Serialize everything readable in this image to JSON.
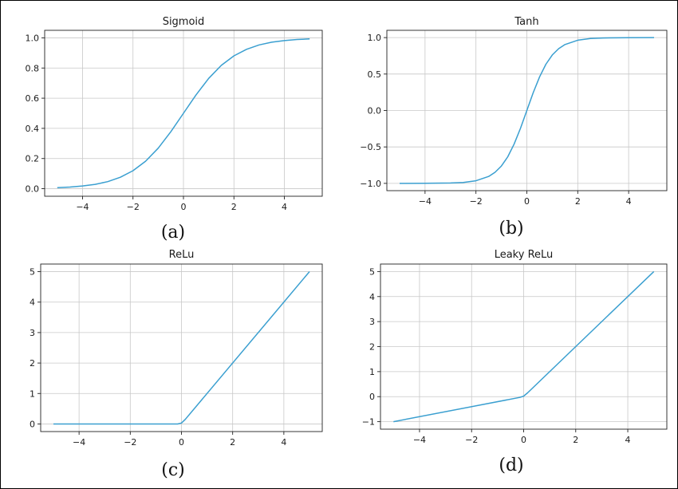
{
  "figure": {
    "background": "#ffffff",
    "border_color": "#000000",
    "line_color": "#3a9fd0",
    "grid_color": "#c8c8c8"
  },
  "chart_data": [
    {
      "type": "line",
      "title": "Sigmoid",
      "panel_label": "(a)",
      "xlabel": "",
      "ylabel": "",
      "xlim": [
        -5.5,
        5.5
      ],
      "ylim": [
        -0.05,
        1.05
      ],
      "xticks": [
        -4,
        -2,
        0,
        2,
        4
      ],
      "xtick_labels": [
        "−4",
        "−2",
        "0",
        "2",
        "4"
      ],
      "yticks": [
        0.0,
        0.2,
        0.4,
        0.6,
        0.8,
        1.0
      ],
      "ytick_labels": [
        "0.0",
        "0.2",
        "0.4",
        "0.6",
        "0.8",
        "1.0"
      ],
      "grid": true,
      "series": [
        {
          "color": "#3a9fd0",
          "x": [
            -5,
            -4.5,
            -4,
            -3.5,
            -3,
            -2.5,
            -2,
            -1.5,
            -1,
            -0.5,
            0,
            0.5,
            1,
            1.5,
            2,
            2.5,
            3,
            3.5,
            4,
            4.5,
            5
          ],
          "y": [
            0.007,
            0.011,
            0.018,
            0.029,
            0.047,
            0.076,
            0.119,
            0.182,
            0.269,
            0.378,
            0.5,
            0.622,
            0.731,
            0.818,
            0.881,
            0.924,
            0.953,
            0.971,
            0.982,
            0.989,
            0.993
          ]
        }
      ]
    },
    {
      "type": "line",
      "title": "Tanh",
      "panel_label": "(b)",
      "xlabel": "",
      "ylabel": "",
      "xlim": [
        -5.5,
        5.5
      ],
      "ylim": [
        -1.1,
        1.1
      ],
      "xticks": [
        -4,
        -2,
        0,
        2,
        4
      ],
      "xtick_labels": [
        "−4",
        "−2",
        "0",
        "2",
        "4"
      ],
      "yticks": [
        -1.0,
        -0.5,
        0.0,
        0.5,
        1.0
      ],
      "ytick_labels": [
        "−1.0",
        "−0.5",
        "0.0",
        "0.5",
        "1.0"
      ],
      "grid": true,
      "series": [
        {
          "color": "#3a9fd0",
          "x": [
            -5,
            -4,
            -3,
            -2.5,
            -2,
            -1.5,
            -1.25,
            -1,
            -0.75,
            -0.5,
            -0.25,
            0,
            0.25,
            0.5,
            0.75,
            1,
            1.25,
            1.5,
            2,
            2.5,
            3,
            4,
            5
          ],
          "y": [
            -1.0,
            -0.999,
            -0.995,
            -0.987,
            -0.964,
            -0.905,
            -0.848,
            -0.762,
            -0.635,
            -0.462,
            -0.245,
            0.0,
            0.245,
            0.462,
            0.635,
            0.762,
            0.848,
            0.905,
            0.964,
            0.987,
            0.995,
            0.999,
            1.0
          ]
        }
      ]
    },
    {
      "type": "line",
      "title": "ReLu",
      "panel_label": "(c)",
      "xlabel": "",
      "ylabel": "",
      "xlim": [
        -5.5,
        5.5
      ],
      "ylim": [
        -0.25,
        5.25
      ],
      "xticks": [
        -4,
        -2,
        0,
        2,
        4
      ],
      "xtick_labels": [
        "−4",
        "−2",
        "0",
        "2",
        "4"
      ],
      "yticks": [
        0,
        1,
        2,
        3,
        4,
        5
      ],
      "ytick_labels": [
        "0",
        "1",
        "2",
        "3",
        "4",
        "5"
      ],
      "grid": true,
      "series": [
        {
          "color": "#3a9fd0",
          "x": [
            -5,
            -0.15,
            0,
            0.15,
            5
          ],
          "y": [
            0,
            0,
            0.03,
            0.15,
            5
          ]
        }
      ]
    },
    {
      "type": "line",
      "title": "Leaky ReLu",
      "panel_label": "(d)",
      "xlabel": "",
      "ylabel": "",
      "xlim": [
        -5.5,
        5.5
      ],
      "ylim": [
        -1.3,
        5.3
      ],
      "xticks": [
        -4,
        -2,
        0,
        2,
        4
      ],
      "xtick_labels": [
        "−4",
        "−2",
        "0",
        "2",
        "4"
      ],
      "yticks": [
        -1,
        0,
        1,
        2,
        3,
        4,
        5
      ],
      "ytick_labels": [
        "−1",
        "0",
        "1",
        "2",
        "3",
        "4",
        "5"
      ],
      "grid": true,
      "series": [
        {
          "color": "#3a9fd0",
          "x": [
            -5,
            -0.15,
            0,
            0.15,
            5
          ],
          "y": [
            -1.0,
            -0.03,
            0.02,
            0.15,
            5
          ]
        }
      ]
    }
  ]
}
